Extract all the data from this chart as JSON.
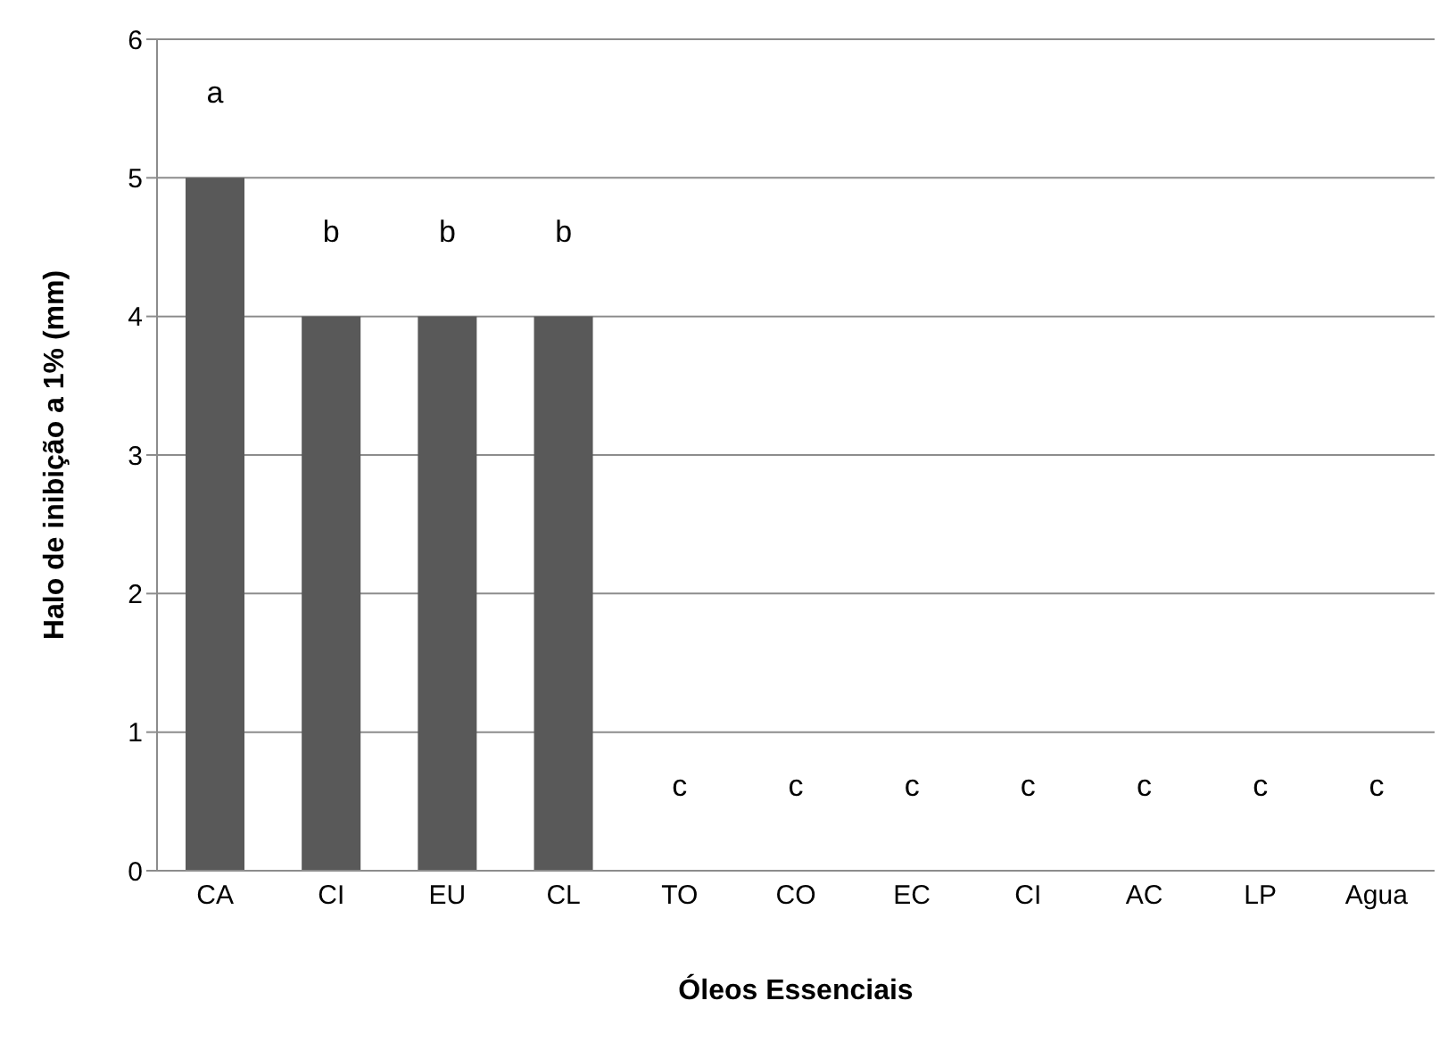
{
  "chart_data": {
    "type": "bar",
    "xlabel": "Óleos Essenciais",
    "ylabel": "Halo de inibição a 1% (mm)",
    "categories": [
      "CA",
      "CI",
      "EU",
      "CL",
      "TO",
      "CO",
      "EC",
      "CI",
      "AC",
      "LP",
      "Agua"
    ],
    "values": [
      5,
      4,
      4,
      4,
      0,
      0,
      0,
      0,
      0,
      0,
      0
    ],
    "value_labels": [
      "a",
      "b",
      "b",
      "b",
      "c",
      "c",
      "c",
      "c",
      "c",
      "c",
      "c"
    ],
    "color": "#595959",
    "ylim": [
      0,
      6
    ],
    "yticks": [
      0,
      1,
      2,
      3,
      4,
      5,
      6
    ],
    "grid": "y"
  }
}
